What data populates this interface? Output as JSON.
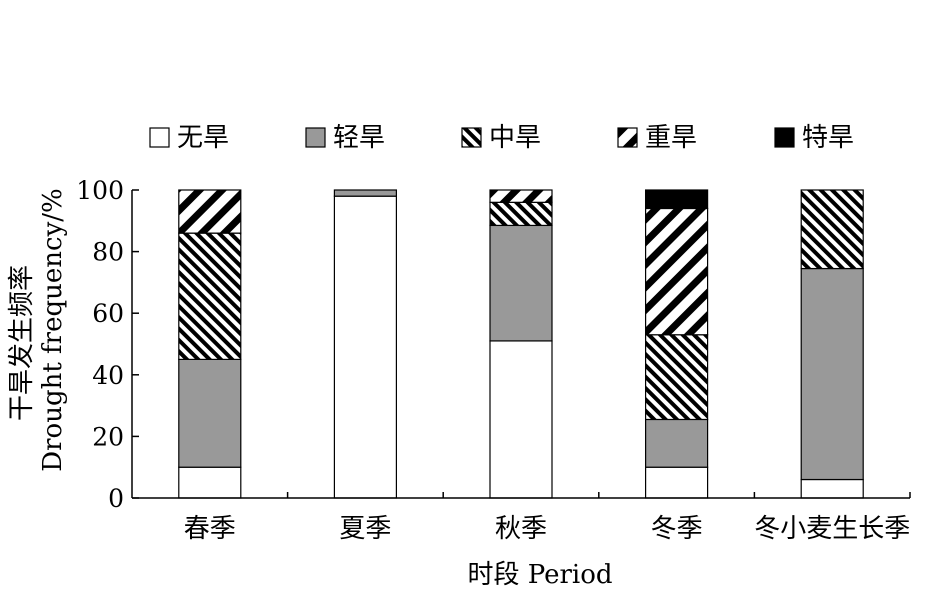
{
  "chart_data": {
    "type": "bar",
    "stacked": true,
    "categories": [
      "春季",
      "夏季",
      "秋季",
      "冬季",
      "冬小麦生长季"
    ],
    "xlabel": "时段 Period",
    "ylabel": "干旱发生频率",
    "ylabel_en": "Drought frequency/%",
    "ylim": [
      0,
      100
    ],
    "yticks": [
      "0",
      "20",
      "40",
      "60",
      "80",
      "100"
    ],
    "legend_position": "top",
    "series": [
      {
        "name": "无旱",
        "values": [
          10,
          98,
          51,
          10,
          6
        ],
        "fill": "white"
      },
      {
        "name": "轻旱",
        "values": [
          35,
          2,
          37.5,
          15.5,
          68.5
        ],
        "fill": "gray",
        "color": "#999999"
      },
      {
        "name": "中旱",
        "values": [
          41,
          0,
          7.5,
          27.5,
          25.5
        ],
        "fill": "hatch-fine"
      },
      {
        "name": "重旱",
        "values": [
          14,
          0,
          4,
          41,
          0
        ],
        "fill": "hatch-coarse"
      },
      {
        "name": "特旱",
        "values": [
          0,
          0,
          0,
          6,
          0
        ],
        "fill": "black",
        "color": "#000000"
      }
    ]
  }
}
